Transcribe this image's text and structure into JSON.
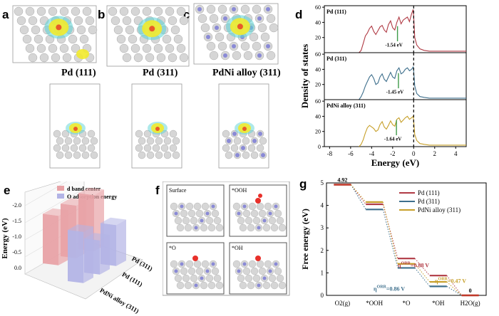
{
  "panels": {
    "a": {
      "letter": "a",
      "caption": "Pd (111)"
    },
    "b": {
      "letter": "b",
      "caption": "Pd (311)"
    },
    "c": {
      "letter": "c",
      "caption": "PdNi alloy (311)"
    },
    "d": {
      "letter": "d"
    },
    "e": {
      "letter": "e"
    },
    "f": {
      "letter": "f"
    },
    "g": {
      "letter": "g"
    }
  },
  "colors": {
    "pd111": "#b03a44",
    "pd311": "#3e6f8c",
    "pdni": "#c7a02a",
    "dband_marker": "#3f9b4a",
    "bar_red": "#e8a2a6",
    "bar_blue": "#b3b4e6",
    "atom": "#d6d6d6",
    "charge_yellow": "#f2ea2c",
    "charge_cyan": "#5bd3d6"
  },
  "snapshots": {
    "surface": "Surface",
    "ooh": "*OOH",
    "o": "*O",
    "oh": "*OH"
  },
  "chart_data": [
    {
      "id": "d",
      "type": "line",
      "xlabel": "Energy (eV)",
      "ylabel": "Density of states",
      "xlim": [
        -8.5,
        5
      ],
      "xticks": [
        -8,
        -6,
        -4,
        -2,
        0,
        2,
        4
      ],
      "ylim": [
        0,
        62
      ],
      "yticks": [
        0,
        20,
        40,
        60
      ],
      "fermi_level": 0,
      "series": [
        {
          "name": "Pd (111)",
          "dband_center_label": "-1.54 eV",
          "dband_center": -1.54,
          "x": [
            -5.2,
            -5.0,
            -4.8,
            -4.6,
            -4.4,
            -4.2,
            -4.0,
            -3.8,
            -3.6,
            -3.4,
            -3.2,
            -3.0,
            -2.8,
            -2.6,
            -2.4,
            -2.2,
            -2.0,
            -1.8,
            -1.6,
            -1.4,
            -1.2,
            -1.0,
            -0.8,
            -0.6,
            -0.4,
            -0.2,
            -0.05,
            0.0,
            0.1,
            0.3,
            0.6,
            1.0,
            1.5,
            2.0,
            2.5,
            3.0,
            3.5,
            4.0,
            4.5,
            5.0
          ],
          "y": [
            0,
            3,
            12,
            22,
            26,
            32,
            35,
            28,
            24,
            29,
            34,
            36,
            30,
            27,
            37,
            42,
            33,
            30,
            40,
            47,
            38,
            43,
            45,
            47,
            41,
            51,
            57,
            48,
            20,
            10,
            5,
            3,
            2,
            2,
            2,
            2,
            2,
            2,
            2,
            2
          ]
        },
        {
          "name": "Pd (311)",
          "dband_center_label": "-1.45 eV",
          "dband_center": -1.45,
          "x": [
            -5.2,
            -5.0,
            -4.8,
            -4.6,
            -4.4,
            -4.2,
            -4.0,
            -3.8,
            -3.6,
            -3.4,
            -3.2,
            -3.0,
            -2.8,
            -2.6,
            -2.4,
            -2.2,
            -2.0,
            -1.8,
            -1.6,
            -1.4,
            -1.2,
            -1.0,
            -0.8,
            -0.6,
            -0.4,
            -0.2,
            -0.05,
            0.0,
            0.1,
            0.3,
            0.6,
            1.0,
            1.5,
            2.0,
            2.5,
            3.0,
            3.5,
            4.0,
            4.5,
            5.0
          ],
          "y": [
            0,
            4,
            10,
            18,
            24,
            30,
            33,
            28,
            20,
            22,
            30,
            34,
            27,
            24,
            30,
            36,
            30,
            28,
            38,
            42,
            34,
            36,
            40,
            42,
            38,
            40,
            43,
            38,
            18,
            8,
            4,
            3,
            2,
            2,
            2,
            2,
            2,
            2,
            2,
            2
          ]
        },
        {
          "name": "PdNi alloy (311)",
          "dband_center_label": "-1.64 eV",
          "dband_center": -1.64,
          "x": [
            -5.2,
            -5.0,
            -4.8,
            -4.6,
            -4.4,
            -4.2,
            -4.0,
            -3.8,
            -3.6,
            -3.4,
            -3.2,
            -3.0,
            -2.8,
            -2.6,
            -2.4,
            -2.2,
            -2.0,
            -1.8,
            -1.6,
            -1.4,
            -1.2,
            -1.0,
            -0.8,
            -0.6,
            -0.4,
            -0.2,
            -0.05,
            0.0,
            0.1,
            0.3,
            0.6,
            1.0,
            1.5,
            2.0,
            2.5,
            3.0,
            3.5,
            4.0,
            4.5,
            5.0
          ],
          "y": [
            0,
            3,
            9,
            18,
            25,
            28,
            26,
            24,
            20,
            22,
            29,
            33,
            26,
            23,
            28,
            34,
            29,
            27,
            36,
            38,
            32,
            35,
            38,
            40,
            36,
            38,
            40,
            34,
            16,
            8,
            4,
            3,
            2,
            2,
            2,
            2,
            2,
            2,
            2,
            2
          ]
        }
      ]
    },
    {
      "id": "e",
      "type": "bar",
      "ylabel": "Energy (eV)",
      "yticks": [
        "-2.0",
        "-1.5",
        "-1.0",
        "-0.5",
        "0.0"
      ],
      "ylim": [
        0,
        -2.0
      ],
      "categories": [
        "Pd (311)",
        "Pd (111)",
        "PdNi alloy (311)"
      ],
      "series": [
        {
          "name": "d band center",
          "values": [
            -1.45,
            -1.54,
            -1.64
          ]
        },
        {
          "name": "O adsorption energy",
          "values": [
            -1.5,
            -1.0,
            -1.2
          ]
        }
      ]
    },
    {
      "id": "g",
      "type": "line",
      "ylabel": "Free energy (eV)",
      "ylim": [
        0,
        5
      ],
      "yticks": [
        0,
        1,
        2,
        3,
        4,
        5
      ],
      "categories": [
        "O2(g)",
        "*OOH",
        "*O",
        "*OH",
        "H2O(g)"
      ],
      "series": [
        {
          "name": "Pd (111)",
          "values": [
            4.92,
            4.05,
            1.64,
            0.88,
            0.0
          ]
        },
        {
          "name": "Pd (311)",
          "values": [
            4.92,
            3.82,
            1.22,
            0.4,
            0.0
          ]
        },
        {
          "name": "PdNi alloy (311)",
          "values": [
            4.92,
            4.15,
            1.4,
            0.6,
            0.0
          ]
        }
      ],
      "annotations": {
        "start": "4.92",
        "end": "0",
        "eta_pd111": "=0.88 V",
        "eta_pd311": "=0.86 V",
        "eta_pdni": "=0.47 V",
        "eta_symbol": "η",
        "eta_sup": "ORR"
      }
    }
  ]
}
